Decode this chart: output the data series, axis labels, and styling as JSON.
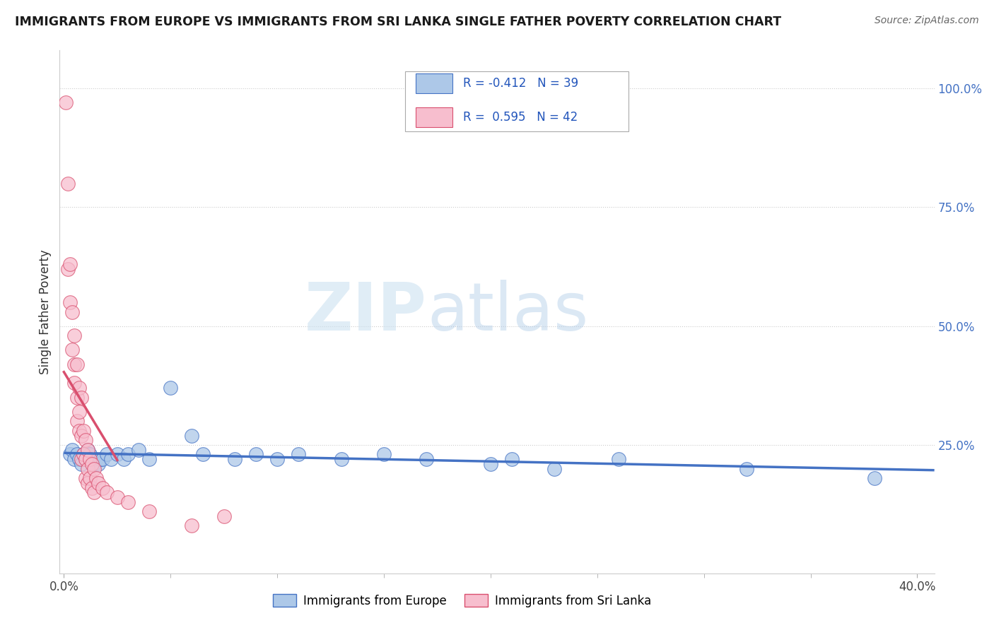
{
  "title": "IMMIGRANTS FROM EUROPE VS IMMIGRANTS FROM SRI LANKA SINGLE FATHER POVERTY CORRELATION CHART",
  "source": "Source: ZipAtlas.com",
  "ylabel": "Single Father Poverty",
  "watermark_zip": "ZIP",
  "watermark_atlas": "atlas",
  "legend_europe": "Immigrants from Europe",
  "legend_srilanka": "Immigrants from Sri Lanka",
  "R_europe": -0.412,
  "N_europe": 39,
  "R_srilanka": 0.595,
  "N_srilanka": 42,
  "xlim": [
    -0.002,
    0.408
  ],
  "ylim": [
    -0.02,
    1.08
  ],
  "x_ticks": [
    0.0,
    0.4
  ],
  "x_tick_labels": [
    "0.0%",
    "40.0%"
  ],
  "y_ticks_right": [
    0.25,
    0.5,
    0.75,
    1.0
  ],
  "y_tick_labels_right": [
    "25.0%",
    "50.0%",
    "75.0%",
    "100.0%"
  ],
  "color_europe": "#adc8e8",
  "color_europe_edge": "#4472c4",
  "color_srilanka": "#f7bece",
  "color_srilanka_edge": "#d94f6e",
  "color_europe_line": "#4472c4",
  "color_srilanka_line": "#d94f6e",
  "background_color": "#ffffff",
  "grid_color": "#cccccc",
  "europe_x": [
    0.003,
    0.004,
    0.005,
    0.006,
    0.007,
    0.008,
    0.009,
    0.01,
    0.011,
    0.012,
    0.013,
    0.014,
    0.015,
    0.016,
    0.017,
    0.018,
    0.02,
    0.022,
    0.025,
    0.028,
    0.03,
    0.035,
    0.04,
    0.05,
    0.06,
    0.065,
    0.08,
    0.09,
    0.1,
    0.11,
    0.13,
    0.15,
    0.17,
    0.2,
    0.21,
    0.23,
    0.26,
    0.32,
    0.38
  ],
  "europe_y": [
    0.23,
    0.24,
    0.22,
    0.23,
    0.22,
    0.21,
    0.23,
    0.22,
    0.24,
    0.23,
    0.22,
    0.21,
    0.22,
    0.21,
    0.22,
    0.22,
    0.23,
    0.22,
    0.23,
    0.22,
    0.23,
    0.24,
    0.22,
    0.37,
    0.27,
    0.23,
    0.22,
    0.23,
    0.22,
    0.23,
    0.22,
    0.23,
    0.22,
    0.21,
    0.22,
    0.2,
    0.22,
    0.2,
    0.18
  ],
  "srilanka_x": [
    0.001,
    0.002,
    0.002,
    0.003,
    0.003,
    0.004,
    0.004,
    0.005,
    0.005,
    0.005,
    0.006,
    0.006,
    0.006,
    0.007,
    0.007,
    0.007,
    0.008,
    0.008,
    0.008,
    0.009,
    0.009,
    0.01,
    0.01,
    0.01,
    0.011,
    0.011,
    0.011,
    0.012,
    0.012,
    0.013,
    0.013,
    0.014,
    0.014,
    0.015,
    0.016,
    0.018,
    0.02,
    0.025,
    0.03,
    0.04,
    0.06,
    0.075
  ],
  "srilanka_y": [
    0.97,
    0.8,
    0.62,
    0.63,
    0.55,
    0.53,
    0.45,
    0.48,
    0.42,
    0.38,
    0.42,
    0.35,
    0.3,
    0.37,
    0.32,
    0.28,
    0.35,
    0.27,
    0.22,
    0.28,
    0.23,
    0.26,
    0.22,
    0.18,
    0.24,
    0.2,
    0.17,
    0.22,
    0.18,
    0.21,
    0.16,
    0.2,
    0.15,
    0.18,
    0.17,
    0.16,
    0.15,
    0.14,
    0.13,
    0.11,
    0.08,
    0.1
  ]
}
